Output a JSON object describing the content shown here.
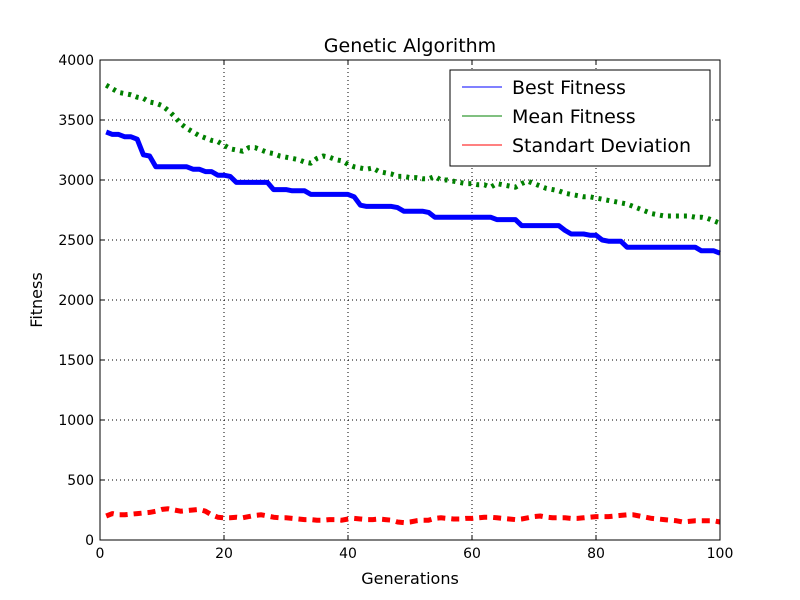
{
  "chart_data": {
    "type": "line",
    "title": "Genetic Algorithm",
    "xlabel": "Generations",
    "ylabel": "Fitness",
    "xlim": [
      0,
      100
    ],
    "ylim": [
      0,
      4000
    ],
    "x_ticks": [
      "0",
      "20",
      "40",
      "60",
      "80",
      "100"
    ],
    "y_ticks": [
      "0",
      "500",
      "1000",
      "1500",
      "2000",
      "2500",
      "3000",
      "3500",
      "4000"
    ],
    "grid": true,
    "legend_position": "top-right",
    "x": [
      1,
      2,
      3,
      4,
      5,
      6,
      7,
      8,
      9,
      10,
      11,
      12,
      13,
      14,
      15,
      16,
      17,
      18,
      19,
      20,
      21,
      22,
      23,
      24,
      25,
      26,
      27,
      28,
      29,
      30,
      31,
      32,
      33,
      34,
      35,
      36,
      37,
      38,
      39,
      40,
      41,
      42,
      43,
      44,
      45,
      46,
      47,
      48,
      49,
      50,
      51,
      52,
      53,
      54,
      55,
      56,
      57,
      58,
      59,
      60,
      61,
      62,
      63,
      64,
      65,
      66,
      67,
      68,
      69,
      70,
      71,
      72,
      73,
      74,
      75,
      76,
      77,
      78,
      79,
      80,
      81,
      82,
      83,
      84,
      85,
      86,
      87,
      88,
      89,
      90,
      91,
      92,
      93,
      94,
      95,
      96,
      97,
      98,
      99,
      100
    ],
    "series": [
      {
        "name": "Best Fitness",
        "color": "#0000ff",
        "style": "solid",
        "values": [
          3400,
          3380,
          3380,
          3360,
          3360,
          3340,
          3210,
          3200,
          3110,
          3110,
          3110,
          3110,
          3110,
          3110,
          3090,
          3090,
          3070,
          3070,
          3040,
          3040,
          3030,
          2980,
          2980,
          2980,
          2980,
          2980,
          2980,
          2920,
          2920,
          2920,
          2910,
          2910,
          2910,
          2880,
          2880,
          2880,
          2880,
          2880,
          2880,
          2880,
          2860,
          2790,
          2780,
          2780,
          2780,
          2780,
          2780,
          2770,
          2740,
          2740,
          2740,
          2740,
          2730,
          2690,
          2690,
          2690,
          2690,
          2690,
          2690,
          2690,
          2690,
          2690,
          2690,
          2670,
          2670,
          2670,
          2670,
          2620,
          2620,
          2620,
          2620,
          2620,
          2620,
          2620,
          2580,
          2550,
          2550,
          2550,
          2540,
          2540,
          2500,
          2490,
          2490,
          2490,
          2440,
          2440,
          2440,
          2440,
          2440,
          2440,
          2440,
          2440,
          2440,
          2440,
          2440,
          2440,
          2410,
          2410,
          2410,
          2390
        ]
      },
      {
        "name": "Mean Fitness",
        "color": "#008000",
        "style": "dotted",
        "values": [
          3790,
          3760,
          3730,
          3720,
          3710,
          3690,
          3680,
          3650,
          3640,
          3620,
          3580,
          3530,
          3470,
          3430,
          3400,
          3370,
          3350,
          3330,
          3320,
          3290,
          3260,
          3250,
          3240,
          3270,
          3270,
          3250,
          3230,
          3220,
          3200,
          3190,
          3180,
          3170,
          3150,
          3140,
          3180,
          3200,
          3190,
          3170,
          3160,
          3130,
          3110,
          3100,
          3090,
          3100,
          3070,
          3060,
          3050,
          3030,
          3030,
          3020,
          3020,
          3010,
          3010,
          3030,
          3000,
          3000,
          2990,
          2980,
          2970,
          2970,
          2960,
          2960,
          2940,
          2970,
          2960,
          2950,
          2940,
          2970,
          2990,
          2970,
          2950,
          2930,
          2920,
          2910,
          2890,
          2880,
          2870,
          2860,
          2860,
          2850,
          2840,
          2830,
          2820,
          2810,
          2800,
          2780,
          2760,
          2740,
          2720,
          2710,
          2700,
          2700,
          2700,
          2700,
          2700,
          2690,
          2690,
          2680,
          2660,
          2640
        ]
      },
      {
        "name": "Standart Deviation",
        "color": "#ff0000",
        "style": "dashed",
        "values": [
          200,
          220,
          210,
          210,
          215,
          220,
          225,
          230,
          240,
          255,
          260,
          250,
          240,
          245,
          250,
          255,
          240,
          210,
          190,
          185,
          185,
          190,
          185,
          195,
          205,
          210,
          200,
          190,
          185,
          185,
          180,
          175,
          170,
          170,
          165,
          165,
          170,
          170,
          165,
          175,
          180,
          175,
          170,
          170,
          175,
          170,
          165,
          150,
          145,
          150,
          160,
          165,
          165,
          180,
          185,
          180,
          175,
          175,
          180,
          180,
          185,
          190,
          190,
          185,
          180,
          175,
          170,
          175,
          185,
          195,
          200,
          190,
          185,
          185,
          185,
          180,
          180,
          185,
          190,
          195,
          195,
          195,
          200,
          205,
          210,
          210,
          200,
          190,
          180,
          175,
          170,
          165,
          160,
          150,
          155,
          160,
          160,
          160,
          160,
          150
        ]
      }
    ]
  }
}
